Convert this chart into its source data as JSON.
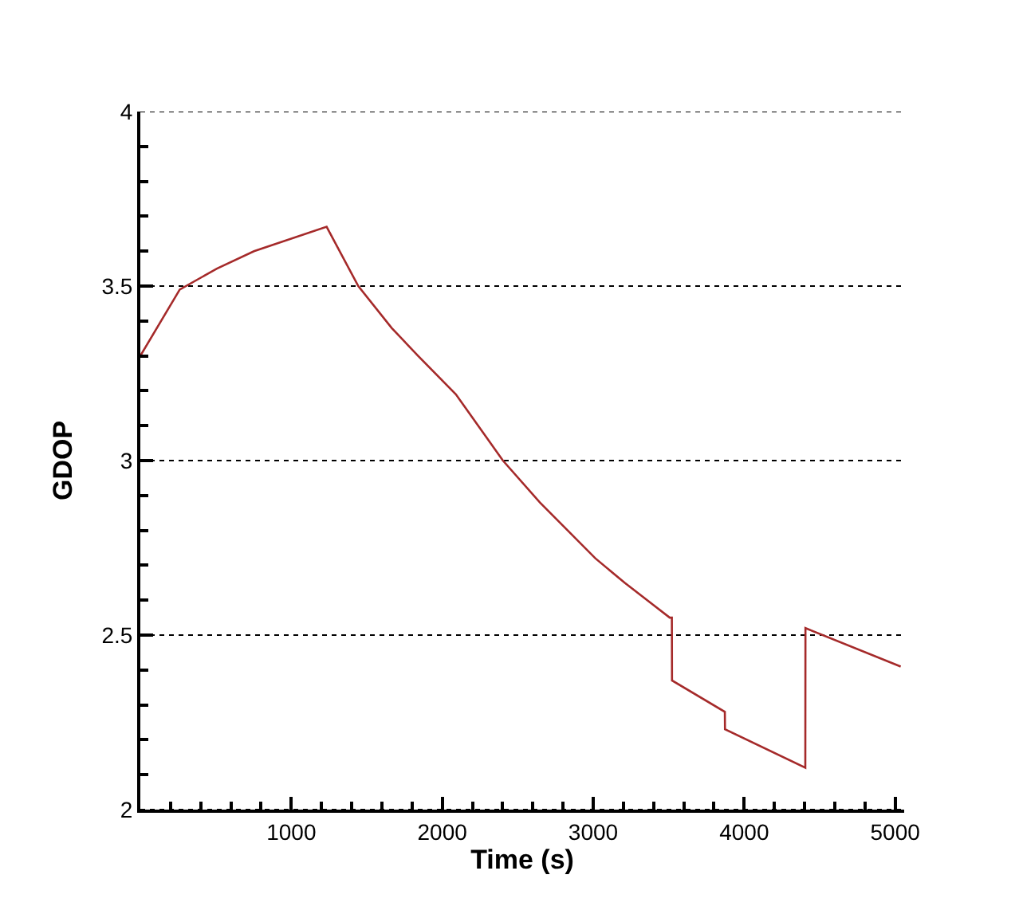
{
  "chart_data": {
    "type": "line",
    "xlabel": "Time (s)",
    "ylabel": "GDOP",
    "x": [
      0,
      261,
      507,
      753,
      1234,
      1444,
      1665,
      1840,
      2090,
      2402,
      2647,
      3014,
      3208,
      3507,
      3521,
      3522,
      3872,
      3873,
      4405,
      4406,
      5037
    ],
    "series": [
      {
        "color": "#a52a2a",
        "values": [
          3.3,
          3.49,
          3.55,
          3.6,
          3.67,
          3.5,
          3.38,
          3.3,
          3.19,
          3.0,
          2.88,
          2.72,
          2.65,
          2.55,
          2.55,
          2.37,
          2.28,
          2.23,
          2.12,
          2.52,
          2.41
        ]
      }
    ],
    "xlim": [
      0,
      5060
    ],
    "xticks": [
      1000,
      2000,
      3000,
      4000,
      5000
    ],
    "ylim": [
      2,
      4
    ],
    "yticks": [
      2,
      2.5,
      3,
      3.5,
      4
    ],
    "grid": "y",
    "line_style": "solid",
    "marker": "none"
  }
}
